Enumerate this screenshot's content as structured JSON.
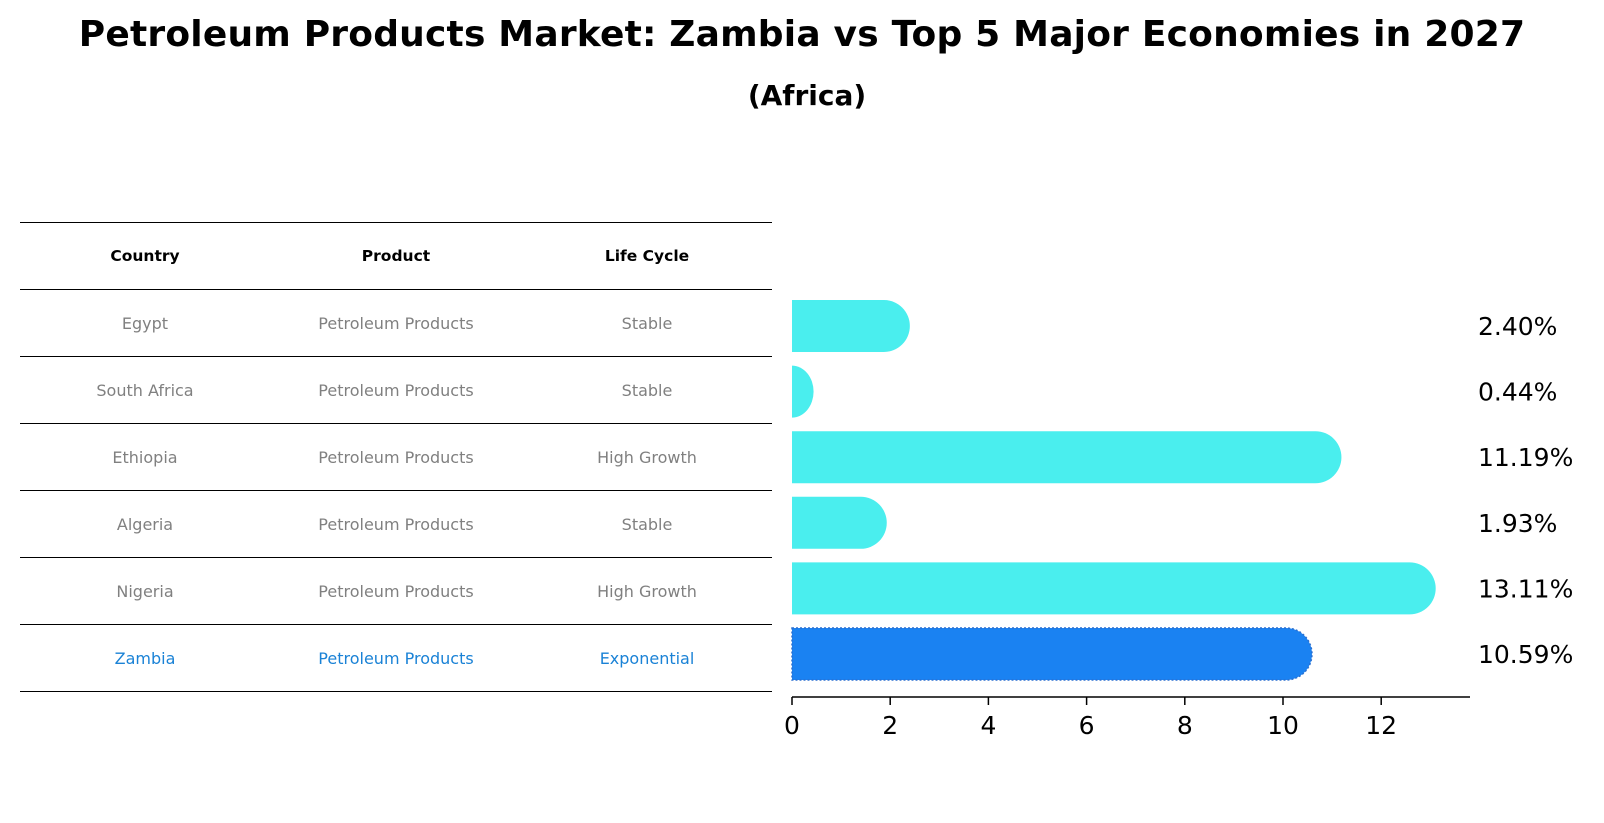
{
  "title": "Petroleum Products Market: Zambia vs Top 5 Major Economies in 2027",
  "subtitle": "(Africa)",
  "table": {
    "headers": [
      "Country",
      "Product",
      "Life Cycle"
    ],
    "rows": [
      [
        "Egypt",
        "Petroleum Products",
        "Stable"
      ],
      [
        "South Africa",
        "Petroleum Products",
        "Stable"
      ],
      [
        "Ethiopia",
        "Petroleum Products",
        "High Growth"
      ],
      [
        "Algeria",
        "Petroleum Products",
        "Stable"
      ],
      [
        "Nigeria",
        "Petroleum Products",
        "High Growth"
      ],
      [
        "Zambia",
        "Petroleum Products",
        "Exponential"
      ]
    ],
    "highlight_row": 5
  },
  "chart_data": {
    "type": "bar",
    "orientation": "horizontal",
    "categories": [
      "Egypt",
      "South Africa",
      "Ethiopia",
      "Algeria",
      "Nigeria",
      "Zambia"
    ],
    "values": [
      2.4,
      0.44,
      11.19,
      1.93,
      13.11,
      10.59
    ],
    "value_labels": [
      "2.40%",
      "0.44%",
      "11.19%",
      "1.93%",
      "13.11%",
      "10.59%"
    ],
    "xlim": [
      0,
      13.8
    ],
    "xticks": [
      0,
      2,
      4,
      6,
      8,
      10,
      12
    ],
    "colors": {
      "default": "#4aeeee",
      "highlight": "#1a82f2"
    },
    "highlight": "Zambia",
    "grid": false
  }
}
